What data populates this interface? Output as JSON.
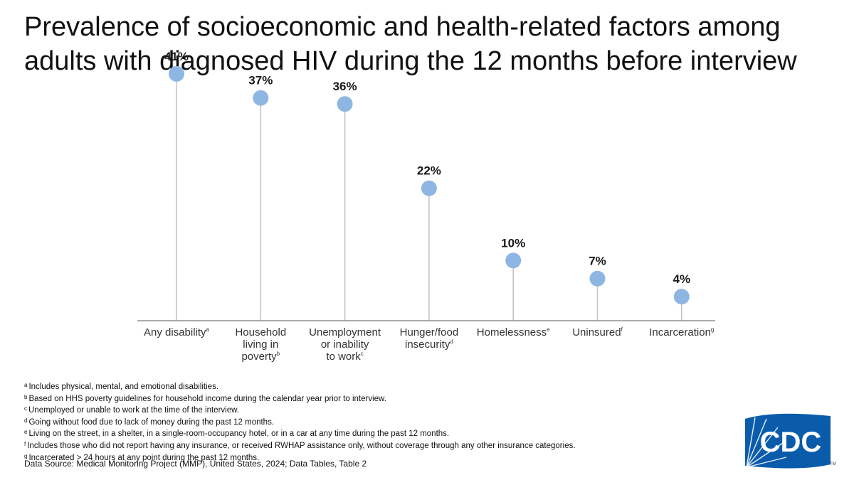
{
  "title_lines": [
    "Prevalence of socioeconomic and health-related factors among",
    "adults with diagnosed HIV during the 12 months before interview"
  ],
  "chart_data": {
    "type": "lollipop",
    "ylim": [
      0,
      45
    ],
    "grid": false,
    "categories": [
      {
        "lines": [
          "Any disability"
        ],
        "sup": "a"
      },
      {
        "lines": [
          "Household",
          "living in",
          "poverty"
        ],
        "sup": "b"
      },
      {
        "lines": [
          "Unemployment",
          "or inability",
          "to work"
        ],
        "sup": "c"
      },
      {
        "lines": [
          "Hunger/food",
          "insecurity"
        ],
        "sup": "d"
      },
      {
        "lines": [
          "Homelessness"
        ],
        "sup": "e"
      },
      {
        "lines": [
          "Uninsured"
        ],
        "sup": "f"
      },
      {
        "lines": [
          "Incarceration"
        ],
        "sup": "g"
      }
    ],
    "values": [
      41,
      37,
      36,
      22,
      10,
      7,
      4
    ],
    "value_labels": [
      "41%",
      "37%",
      "36%",
      "22%",
      "10%",
      "7%",
      "4%"
    ],
    "colors": {
      "dot": "#8db6e3",
      "stem": "#c4c4c4",
      "axis": "#7a7a7a"
    }
  },
  "footnotes": [
    {
      "mark": "a",
      "text": "Includes physical, mental, and emotional disabilities."
    },
    {
      "mark": "b",
      "text": "Based on HHS poverty guidelines for household income during the calendar year prior to interview."
    },
    {
      "mark": "c",
      "text": "Unemployed or unable to work at the time of the interview."
    },
    {
      "mark": "d",
      "text": "Going without food due to lack of money during the past 12 months."
    },
    {
      "mark": "e",
      "text": "Living on the street, in a shelter, in a single-room-occupancy hotel, or in a car at any time during the past 12 months."
    },
    {
      "mark": "f",
      "text": "Includes those who did not report having any insurance, or received RWHAP assistance only, without coverage through any other insurance categories."
    },
    {
      "mark": "g",
      "text": "Incarcerated > 24 hours at any point during the past 12 months."
    }
  ],
  "source": "Data Source: Medical Monitoring Project (MMP), United States, 2024; Data Tables, Table 2",
  "logo": {
    "text": "CDC",
    "tm": "TM",
    "color": "#0a5cab"
  }
}
